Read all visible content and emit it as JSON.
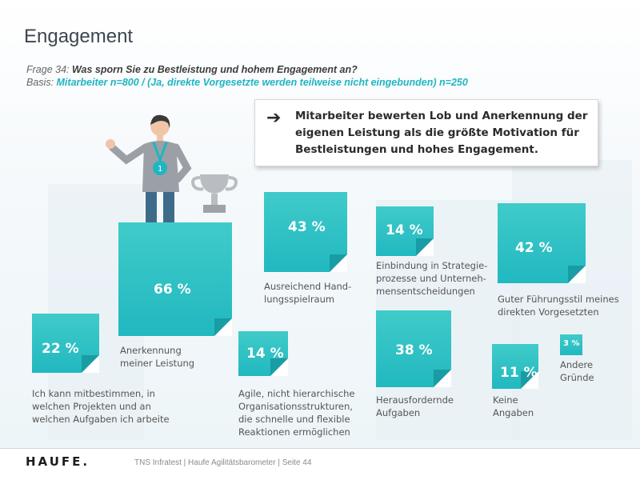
{
  "header": {
    "title": "Engagement",
    "question_prefix": "Frage 34: ",
    "question": "Was sporn Sie zu Bestleistung und hohem Engagement an?",
    "basis_prefix": "Basis: ",
    "basis": "Mitarbeiter n=800 / (Ja, direkte Vorgesetzte werden teilweise nicht eingebunden) n=250"
  },
  "callout": {
    "text": "Mitarbeiter bewerten Lob und Anerkennung der eigenen Leistung als die größte Motivation für Bestleistungen und hohes Engagement."
  },
  "chart_data": {
    "type": "bar",
    "unit": "%",
    "categories": [
      "Ich kann mitbestimmen, in welchen Projekten und an welchen Aufgaben ich arbeite",
      "Anerkennung meiner Leistung",
      "Ausreichend Handlungsspielraum",
      "Agile, nicht hierarchische Organisationsstrukturen, die schnelle und flexible Reaktionen ermöglichen",
      "Einbindung in Strategieprozesse und Unternehmensentscheidungen",
      "Herausfordernde Aufgaben",
      "Guter Führungsstil meines direkten Vorgesetzten",
      "Keine Angaben",
      "Andere Gründe"
    ],
    "values": [
      22,
      66,
      43,
      14,
      14,
      38,
      42,
      11,
      3
    ],
    "value_labels": [
      "22 %",
      "66 %",
      "43 %",
      "14 %",
      "14 %",
      "38 %",
      "42 %",
      "11 %",
      "3 %"
    ]
  },
  "labels": {
    "l22": [
      "Ich kann mitbestimmen, in",
      "welchen Projekten und an",
      "welchen Aufgaben ich arbeite"
    ],
    "l66": [
      "Anerkennung",
      "meiner Leistung"
    ],
    "l43": [
      "Ausreichend Hand-",
      "lungsspielraum"
    ],
    "l14a": [
      "Agile, nicht hierarchische",
      "Organisationsstrukturen,",
      "die schnelle und flexible",
      "Reaktionen ermöglichen"
    ],
    "l14b": [
      "Einbindung in Strategie-",
      "prozesse und Unterneh-",
      "mensentscheidungen"
    ],
    "l38": [
      "Herausfordernde",
      "Aufgaben"
    ],
    "l42": [
      "Guter Führungsstil meines",
      "direkten Vorgesetzten"
    ],
    "l11": [
      "Keine",
      "Angaben"
    ],
    "l3": [
      "Andere",
      "Gründe"
    ]
  },
  "colors": {
    "tile": "#2ec0c4",
    "accent_text": "#1fb5c2"
  },
  "footer": {
    "logo": "HAUFE.",
    "text": "TNS Infratest | Haufe Agilitätsbarometer | Seite 44"
  }
}
